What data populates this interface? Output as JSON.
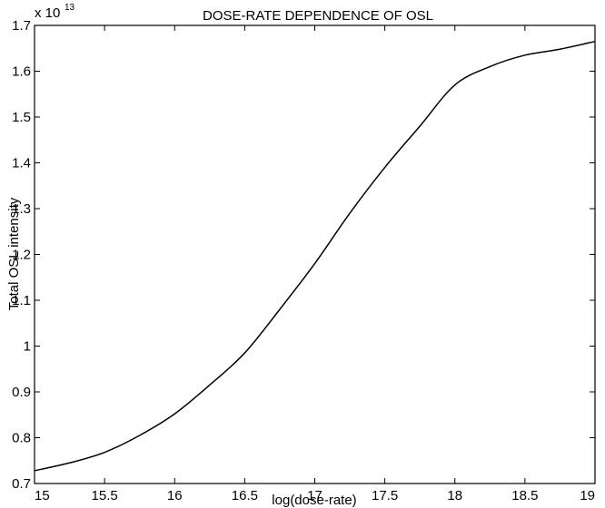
{
  "chart_data": {
    "type": "line",
    "title": "DOSE-RATE DEPENDENCE OF OSL",
    "xlabel": "log(dose-rate)",
    "ylabel": "Total OSL intensity",
    "y_multiplier": "x 10",
    "y_multiplier_exponent": "13",
    "xlim": [
      15,
      19
    ],
    "ylim": [
      0.7,
      1.7
    ],
    "x_ticks": [
      15,
      15.5,
      16,
      16.5,
      17,
      17.5,
      18,
      18.5,
      19
    ],
    "x_tick_labels": [
      "15",
      "15.5",
      "16",
      "16.5",
      "17",
      "17.5",
      "18",
      "18.5",
      "19"
    ],
    "y_ticks": [
      0.7,
      0.8,
      0.9,
      1.0,
      1.1,
      1.2,
      1.3,
      1.4,
      1.5,
      1.6,
      1.7
    ],
    "y_tick_labels": [
      "0.7",
      "0.8",
      "0.9",
      "1",
      "1.1",
      "1.2",
      "1.3",
      "1.4",
      "1.5",
      "1.6",
      "1.7"
    ],
    "grid": false,
    "series": [
      {
        "x": [
          15.0,
          15.25,
          15.5,
          15.75,
          16.0,
          16.25,
          16.5,
          16.75,
          17.0,
          17.25,
          17.5,
          17.75,
          18.0,
          18.25,
          18.5,
          18.75,
          19.0
        ],
        "values": [
          0.728,
          0.745,
          0.768,
          0.805,
          0.852,
          0.915,
          0.985,
          1.08,
          1.18,
          1.29,
          1.39,
          1.48,
          1.57,
          1.61,
          1.635,
          1.648,
          1.665
        ]
      }
    ]
  }
}
